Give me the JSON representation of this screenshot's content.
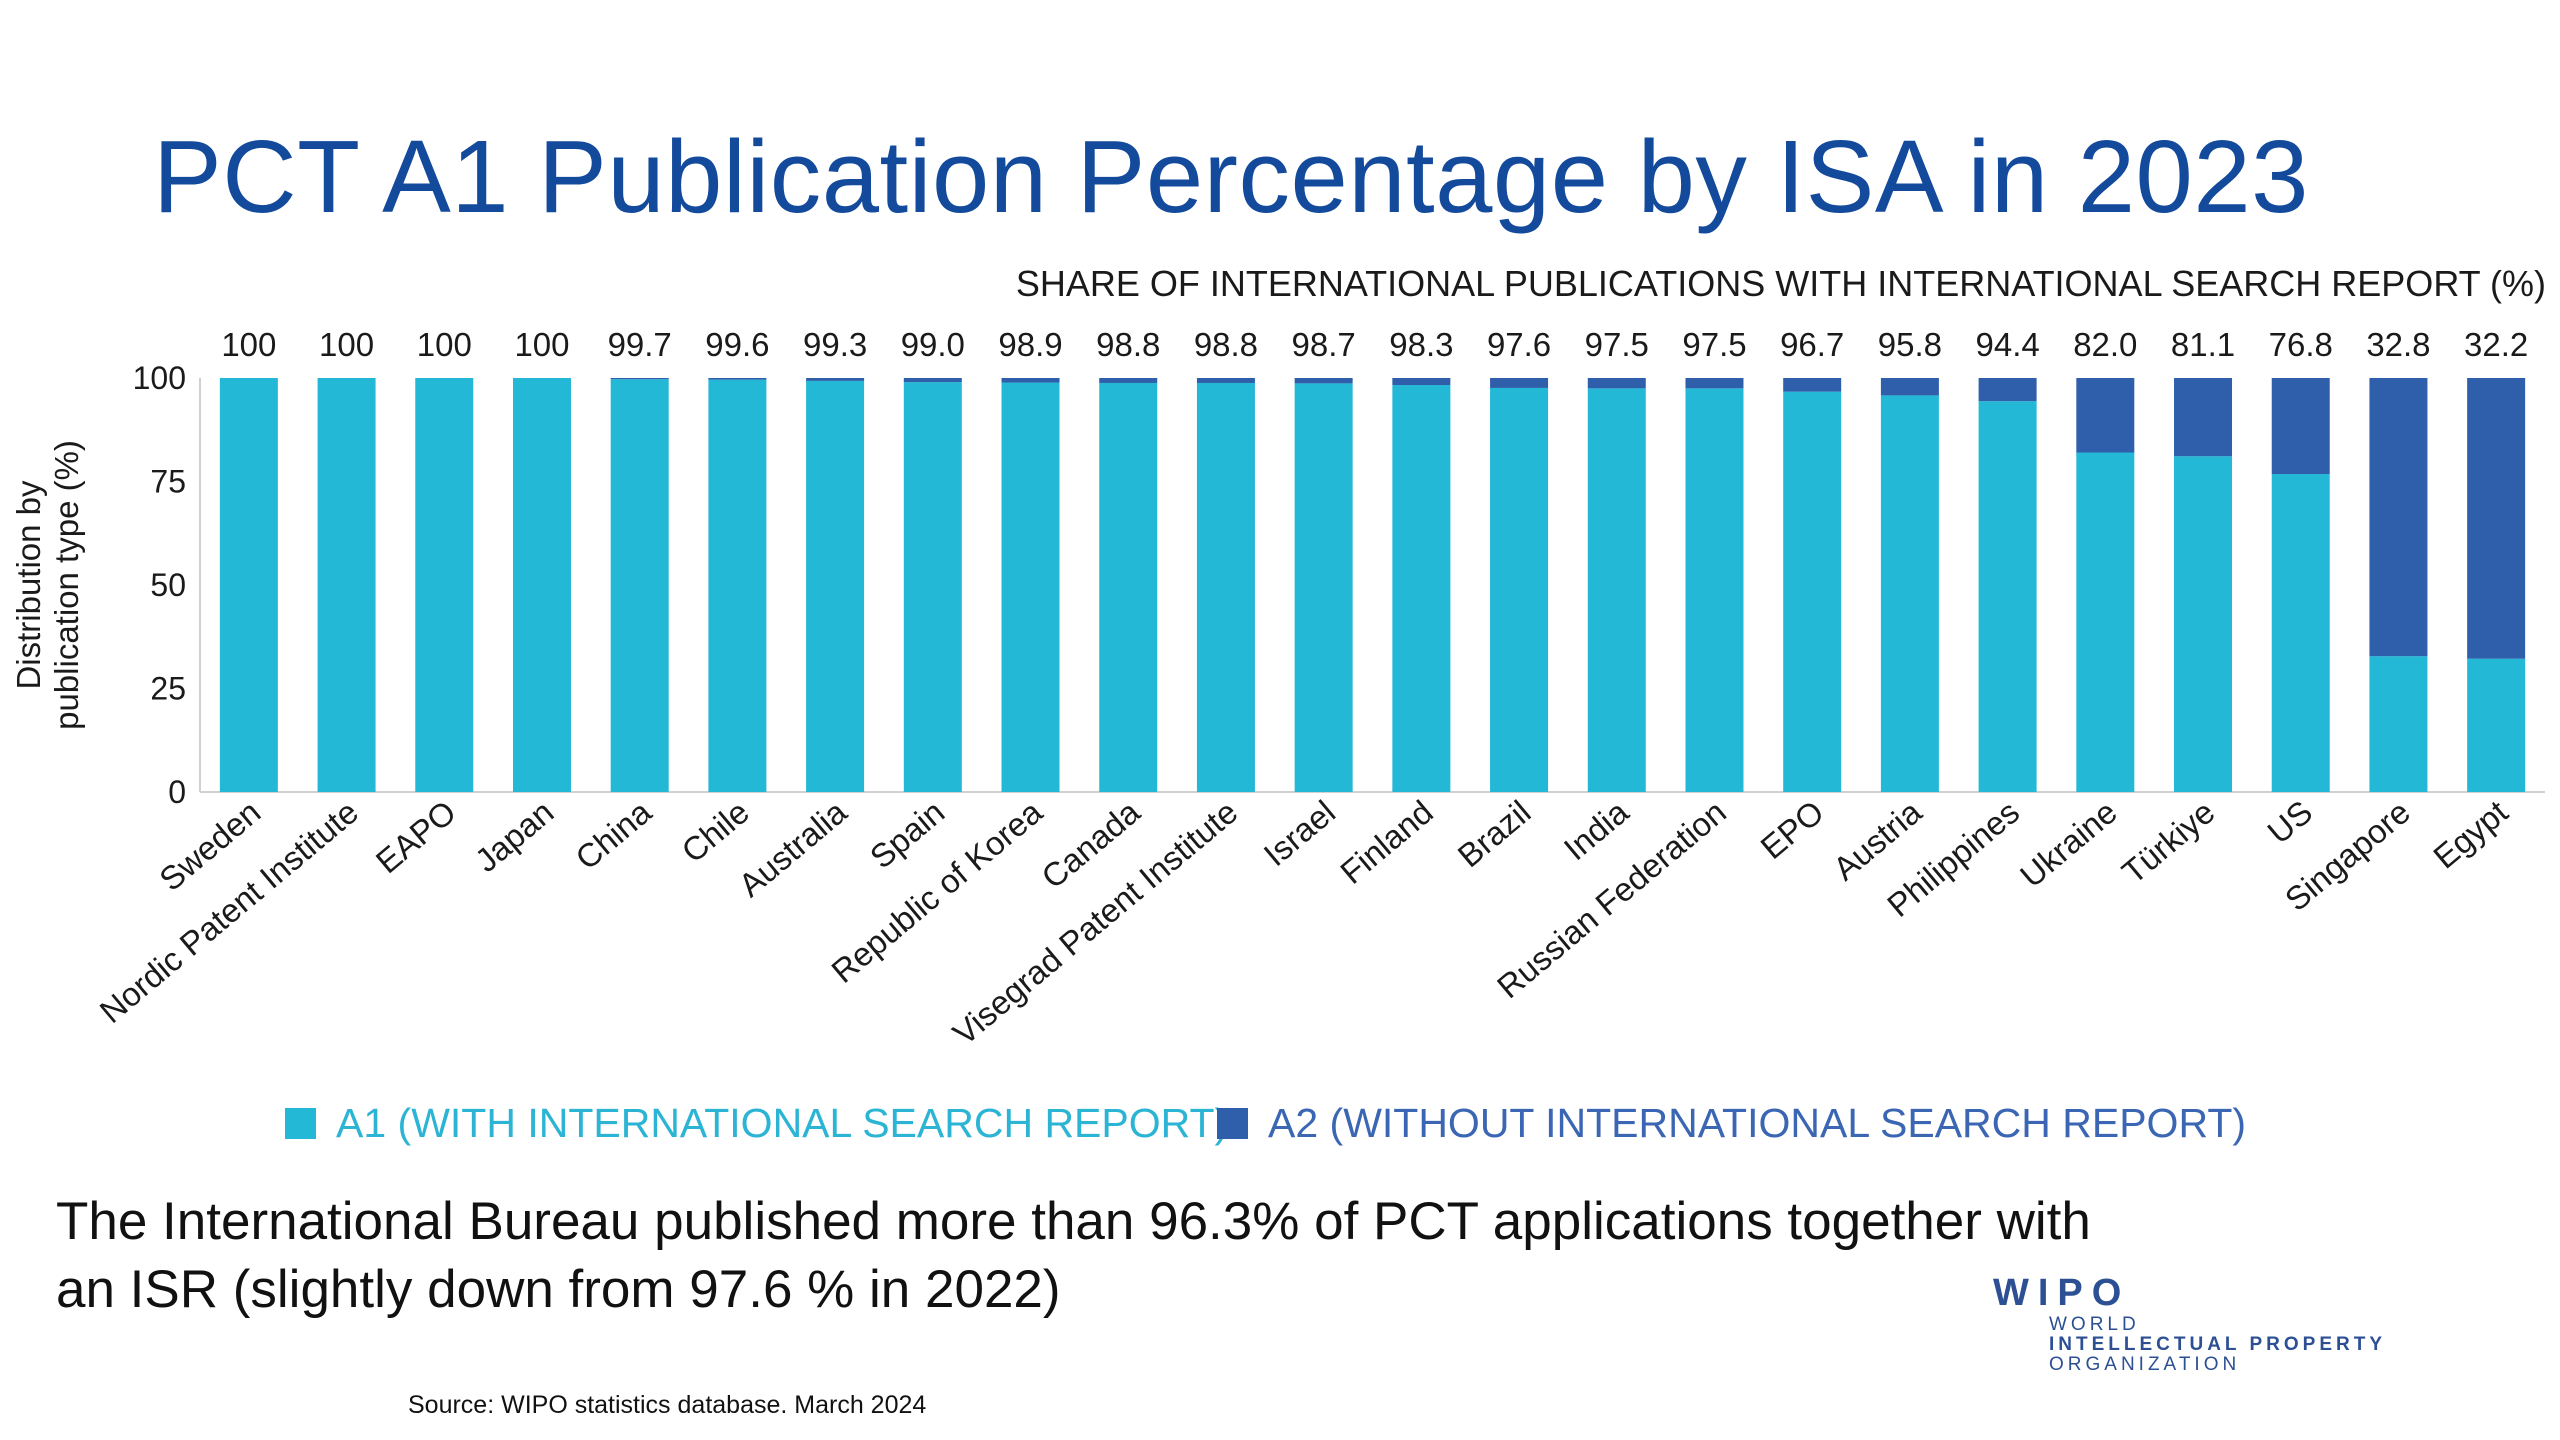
{
  "slide": {
    "title": "PCT A1 Publication Percentage by ISA in 2023",
    "caption": "The International Bureau published more than 96.3% of PCT applications together with an ISR (slightly down from 97.6 % in 2022)",
    "source": "Source:  WIPO statistics database. March 2024",
    "logo": {
      "mark": "WIPO",
      "line1": "WORLD",
      "line2": "INTELLECTUAL PROPERTY",
      "line3": "ORGANIZATION"
    }
  },
  "chart_data": {
    "type": "bar",
    "stacked": true,
    "subtitle": "SHARE OF INTERNATIONAL PUBLICATIONS WITH INTERNATIONAL SEARCH REPORT (%)",
    "ylabel": "Distribution by\npublication type (%)",
    "ylim": [
      0,
      100
    ],
    "yticks": [
      0,
      25,
      50,
      75,
      100
    ],
    "grid": false,
    "legend_position": "bottom",
    "categories": [
      "Sweden",
      "Nordic Patent Institute",
      "EAPO",
      "Japan",
      "China",
      "Chile",
      "Australia",
      "Spain",
      "Republic of Korea",
      "Canada",
      "Visegrad Patent Institute",
      "Israel",
      "Finland",
      "Brazil",
      "India",
      "Russian Federation",
      "EPO",
      "Austria",
      "Philippines",
      "Ukraine",
      "Türkiye",
      "US",
      "Singapore",
      "Egypt"
    ],
    "value_labels": [
      "100",
      "100",
      "100",
      "100",
      "99.7",
      "99.6",
      "99.3",
      "99.0",
      "98.9",
      "98.8",
      "98.8",
      "98.7",
      "98.3",
      "97.6",
      "97.5",
      "97.5",
      "96.7",
      "95.8",
      "94.4",
      "82.0",
      "81.1",
      "76.8",
      "32.8",
      "32.2"
    ],
    "series": [
      {
        "name": "A1 (WITH INTERNATIONAL SEARCH REPORT)",
        "color": "#23b8d6",
        "values": [
          100,
          100,
          100,
          100,
          99.7,
          99.6,
          99.3,
          99.0,
          98.9,
          98.8,
          98.8,
          98.7,
          98.3,
          97.6,
          97.5,
          97.5,
          96.7,
          95.8,
          94.4,
          82.0,
          81.1,
          76.8,
          32.8,
          32.2
        ]
      },
      {
        "name": "A2 (WITHOUT INTERNATIONAL SEARCH REPORT)",
        "color": "#2f5fab",
        "values": [
          0,
          0,
          0,
          0,
          0.3,
          0.4,
          0.7,
          1.0,
          1.1,
          1.2,
          1.2,
          1.3,
          1.7,
          2.4,
          2.5,
          2.5,
          3.3,
          4.2,
          5.6,
          18.0,
          18.9,
          23.2,
          67.2,
          67.8
        ]
      }
    ]
  }
}
